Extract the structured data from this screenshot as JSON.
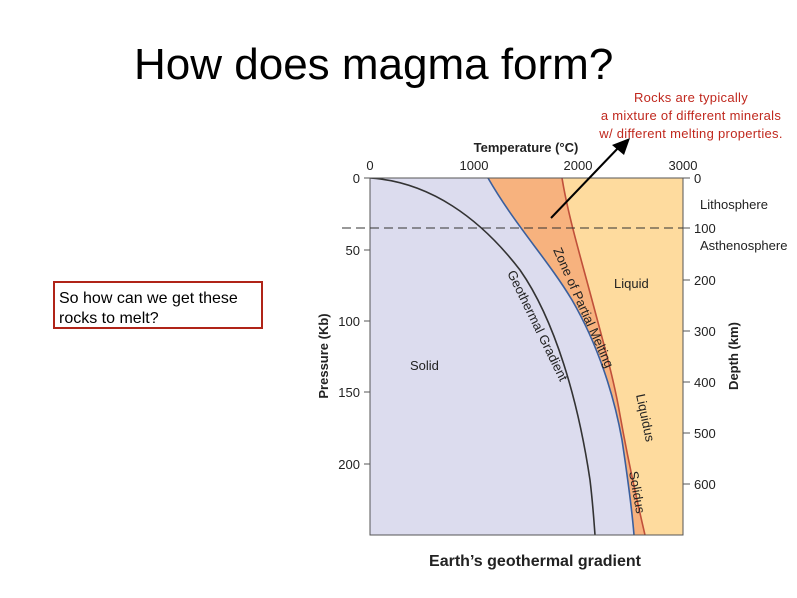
{
  "slide": {
    "title": "How does magma form?",
    "note_lines": [
      "Rocks are typically",
      "a mixture of different minerals",
      "w/ different melting properties."
    ],
    "question_lines": [
      "So how can we get these",
      "rocks to melt?"
    ]
  },
  "diagram": {
    "caption": "Earth’s geothermal gradient",
    "x_axis_title": "Temperature (°C)",
    "x_ticks": [
      "0",
      "1000",
      "2000",
      "3000"
    ],
    "y_left_title": "Pressure (Kb)",
    "y_left_ticks": [
      "0",
      "50",
      "100",
      "150",
      "200"
    ],
    "y_right_title": "Depth (km)",
    "y_right_ticks": [
      "0",
      "100",
      "200",
      "300",
      "400",
      "500",
      "600"
    ],
    "labels": {
      "solid": "Solid",
      "liquid": "Liquid",
      "geothermal": "Geothermal Gradient",
      "zone": "Zone of Partial Melting",
      "liquidus": "Liquidus",
      "solidus": "Solidus",
      "lithosphere": "Lithosphere",
      "asthenosphere": "Asthenosphere"
    },
    "colors": {
      "solid": "#dcdcee",
      "partial": "#f7b27e",
      "liquid": "#fedb9e",
      "gradient_curve": "#3a5f9e",
      "melt_curves": "#c0503a",
      "note_text": "#c0281e"
    }
  }
}
